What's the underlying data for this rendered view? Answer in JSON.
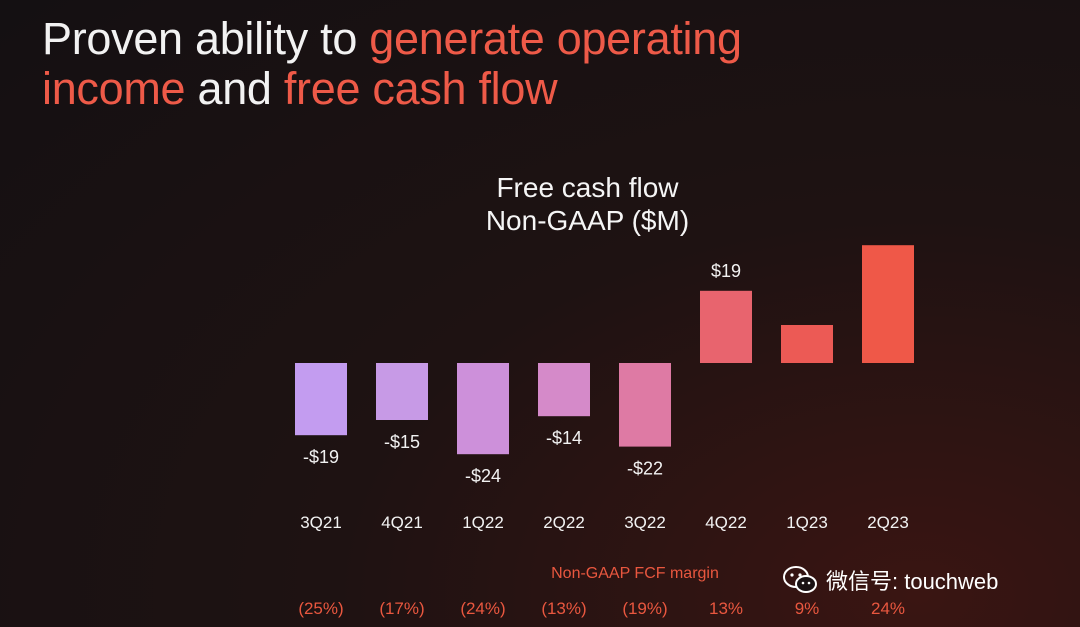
{
  "headline": {
    "part1": "Proven ability to ",
    "part2": "generate operating",
    "part3": "income",
    "part4": " and ",
    "part5": "free cash flow"
  },
  "chart_data": {
    "type": "bar",
    "title_line1": "Free cash flow",
    "title_line2": "Non-GAAP ($M)",
    "categories": [
      "3Q21",
      "4Q21",
      "1Q22",
      "2Q22",
      "3Q22",
      "4Q22",
      "1Q23",
      "2Q23"
    ],
    "values": [
      -19,
      -15,
      -24,
      -14,
      -22,
      19,
      10,
      31
    ],
    "data_labels": [
      "-$19",
      "-$15",
      "-$24",
      "-$14",
      "-$22",
      "$19",
      "",
      ""
    ],
    "margin_title": "Non-GAAP FCF margin",
    "margins": [
      "(25%)",
      "(17%)",
      "(24%)",
      "(13%)",
      "(19%)",
      "13%",
      "9%",
      "24%"
    ],
    "colors": [
      "#c39cf0",
      "#c79ae6",
      "#cd90da",
      "#d58ac9",
      "#de7aa4",
      "#e8646e",
      "#ec5a55",
      "#ef5848"
    ]
  },
  "watermark": {
    "icon": "wechat-icon",
    "text": "微信号: touchweb"
  }
}
